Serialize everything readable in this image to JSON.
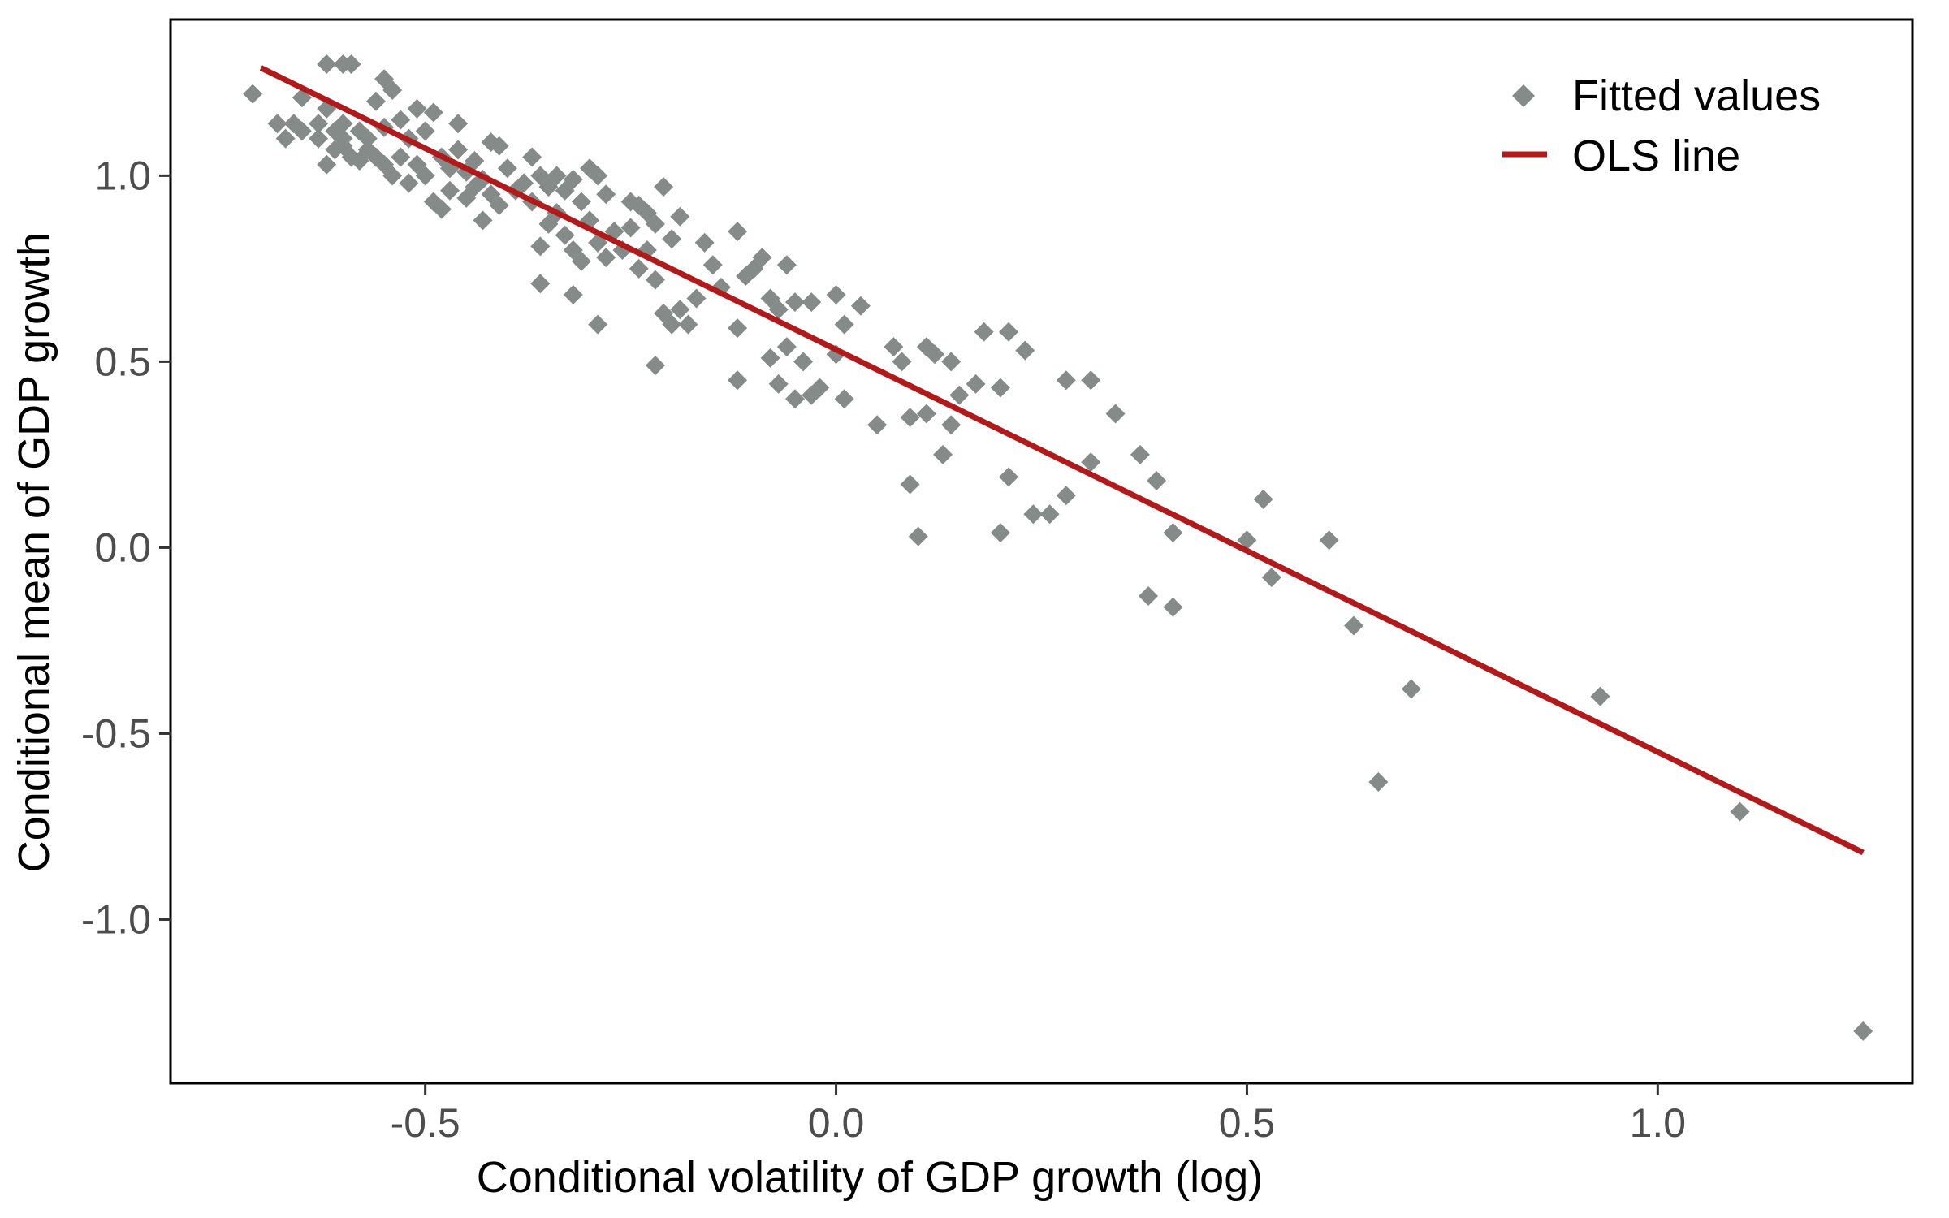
{
  "chart_data": {
    "type": "scatter",
    "title": "",
    "xlabel": "Conditional volatility of GDP growth (log)",
    "ylabel": "Conditional mean of GDP growth",
    "xlim": [
      -0.81,
      1.31
    ],
    "ylim": [
      -1.44,
      1.42
    ],
    "x_ticks": [
      -0.5,
      0.0,
      0.5,
      1.0
    ],
    "x_tick_labels": [
      "-0.5",
      "0.0",
      "0.5",
      "1.0"
    ],
    "y_ticks": [
      -1.0,
      -0.5,
      0.0,
      0.5,
      1.0
    ],
    "y_tick_labels": [
      "-1.0",
      "-0.5",
      "0.0",
      "0.5",
      "1.0"
    ],
    "grid": false,
    "legend": {
      "placement": "top-right",
      "entries": [
        {
          "label": "Fitted values",
          "type": "diamond",
          "color": "#848b89"
        },
        {
          "label": "OLS line",
          "type": "line",
          "color": "#b11a1a"
        }
      ]
    },
    "series": [
      {
        "type": "scatter",
        "name": "Fitted values",
        "color": "#848b89",
        "points": [
          [
            -0.71,
            1.22
          ],
          [
            -0.68,
            1.14
          ],
          [
            -0.67,
            1.1
          ],
          [
            -0.66,
            1.14
          ],
          [
            -0.65,
            1.12
          ],
          [
            -0.65,
            1.21
          ],
          [
            -0.63,
            1.14
          ],
          [
            -0.63,
            1.1
          ],
          [
            -0.62,
            1.3
          ],
          [
            -0.62,
            1.18
          ],
          [
            -0.62,
            1.03
          ],
          [
            -0.61,
            1.12
          ],
          [
            -0.61,
            1.07
          ],
          [
            -0.6,
            1.3
          ],
          [
            -0.6,
            1.14
          ],
          [
            -0.6,
            1.1
          ],
          [
            -0.6,
            1.08
          ],
          [
            -0.59,
            1.3
          ],
          [
            -0.59,
            1.05
          ],
          [
            -0.58,
            1.12
          ],
          [
            -0.58,
            1.04
          ],
          [
            -0.57,
            1.1
          ],
          [
            -0.57,
            1.07
          ],
          [
            -0.56,
            1.2
          ],
          [
            -0.56,
            1.05
          ],
          [
            -0.55,
            1.26
          ],
          [
            -0.55,
            1.13
          ],
          [
            -0.55,
            1.03
          ],
          [
            -0.54,
            1.23
          ],
          [
            -0.54,
            1.0
          ],
          [
            -0.53,
            1.15
          ],
          [
            -0.53,
            1.05
          ],
          [
            -0.52,
            1.1
          ],
          [
            -0.52,
            0.98
          ],
          [
            -0.51,
            1.18
          ],
          [
            -0.51,
            1.03
          ],
          [
            -0.5,
            1.12
          ],
          [
            -0.5,
            1.0
          ],
          [
            -0.49,
            1.17
          ],
          [
            -0.49,
            0.93
          ],
          [
            -0.48,
            1.05
          ],
          [
            -0.48,
            0.91
          ],
          [
            -0.47,
            1.02
          ],
          [
            -0.47,
            0.96
          ],
          [
            -0.46,
            1.14
          ],
          [
            -0.46,
            1.07
          ],
          [
            -0.45,
            1.01
          ],
          [
            -0.45,
            0.94
          ],
          [
            -0.44,
            1.04
          ],
          [
            -0.44,
            0.97
          ],
          [
            -0.43,
            0.99
          ],
          [
            -0.43,
            0.88
          ],
          [
            -0.42,
            1.09
          ],
          [
            -0.42,
            0.95
          ],
          [
            -0.41,
            1.08
          ],
          [
            -0.41,
            0.92
          ],
          [
            -0.4,
            1.02
          ],
          [
            -0.39,
            0.96
          ],
          [
            -0.38,
            0.98
          ],
          [
            -0.37,
            1.05
          ],
          [
            -0.37,
            0.93
          ],
          [
            -0.36,
            1.0
          ],
          [
            -0.36,
            0.81
          ],
          [
            -0.36,
            0.71
          ],
          [
            -0.35,
            0.97
          ],
          [
            -0.35,
            0.87
          ],
          [
            -0.34,
            1.0
          ],
          [
            -0.34,
            0.9
          ],
          [
            -0.33,
            0.96
          ],
          [
            -0.33,
            0.84
          ],
          [
            -0.32,
            0.99
          ],
          [
            -0.32,
            0.8
          ],
          [
            -0.32,
            0.68
          ],
          [
            -0.31,
            0.93
          ],
          [
            -0.31,
            0.77
          ],
          [
            -0.3,
            1.02
          ],
          [
            -0.3,
            0.88
          ],
          [
            -0.29,
            1.0
          ],
          [
            -0.29,
            0.82
          ],
          [
            -0.29,
            0.6
          ],
          [
            -0.28,
            0.95
          ],
          [
            -0.28,
            0.78
          ],
          [
            -0.27,
            0.85
          ],
          [
            -0.26,
            0.8
          ],
          [
            -0.25,
            0.93
          ],
          [
            -0.25,
            0.86
          ],
          [
            -0.24,
            0.92
          ],
          [
            -0.24,
            0.75
          ],
          [
            -0.23,
            0.9
          ],
          [
            -0.23,
            0.8
          ],
          [
            -0.22,
            0.87
          ],
          [
            -0.22,
            0.72
          ],
          [
            -0.22,
            0.49
          ],
          [
            -0.21,
            0.97
          ],
          [
            -0.21,
            0.63
          ],
          [
            -0.2,
            0.83
          ],
          [
            -0.2,
            0.6
          ],
          [
            -0.19,
            0.89
          ],
          [
            -0.19,
            0.64
          ],
          [
            -0.18,
            0.6
          ],
          [
            -0.17,
            0.67
          ],
          [
            -0.16,
            0.82
          ],
          [
            -0.15,
            0.76
          ],
          [
            -0.14,
            0.7
          ],
          [
            -0.12,
            0.85
          ],
          [
            -0.12,
            0.59
          ],
          [
            -0.12,
            0.45
          ],
          [
            -0.11,
            0.73
          ],
          [
            -0.1,
            0.75
          ],
          [
            -0.09,
            0.78
          ],
          [
            -0.08,
            0.67
          ],
          [
            -0.08,
            0.51
          ],
          [
            -0.07,
            0.64
          ],
          [
            -0.07,
            0.44
          ],
          [
            -0.06,
            0.76
          ],
          [
            -0.06,
            0.54
          ],
          [
            -0.05,
            0.66
          ],
          [
            -0.05,
            0.4
          ],
          [
            -0.04,
            0.5
          ],
          [
            -0.03,
            0.66
          ],
          [
            -0.03,
            0.41
          ],
          [
            -0.02,
            0.43
          ],
          [
            0.0,
            0.68
          ],
          [
            0.0,
            0.52
          ],
          [
            0.01,
            0.6
          ],
          [
            0.01,
            0.4
          ],
          [
            0.03,
            0.65
          ],
          [
            0.05,
            0.33
          ],
          [
            0.07,
            0.54
          ],
          [
            0.08,
            0.5
          ],
          [
            0.09,
            0.35
          ],
          [
            0.09,
            0.17
          ],
          [
            0.1,
            0.03
          ],
          [
            0.11,
            0.54
          ],
          [
            0.11,
            0.36
          ],
          [
            0.12,
            0.52
          ],
          [
            0.13,
            0.25
          ],
          [
            0.14,
            0.5
          ],
          [
            0.14,
            0.33
          ],
          [
            0.15,
            0.41
          ],
          [
            0.17,
            0.44
          ],
          [
            0.18,
            0.58
          ],
          [
            0.2,
            0.43
          ],
          [
            0.2,
            0.04
          ],
          [
            0.21,
            0.58
          ],
          [
            0.21,
            0.19
          ],
          [
            0.23,
            0.53
          ],
          [
            0.24,
            0.09
          ],
          [
            0.26,
            0.09
          ],
          [
            0.28,
            0.45
          ],
          [
            0.28,
            0.14
          ],
          [
            0.31,
            0.45
          ],
          [
            0.31,
            0.23
          ],
          [
            0.34,
            0.36
          ],
          [
            0.37,
            0.25
          ],
          [
            0.38,
            -0.13
          ],
          [
            0.39,
            0.18
          ],
          [
            0.41,
            0.04
          ],
          [
            0.41,
            -0.16
          ],
          [
            0.5,
            0.02
          ],
          [
            0.52,
            0.13
          ],
          [
            0.53,
            -0.08
          ],
          [
            0.6,
            0.02
          ],
          [
            0.63,
            -0.21
          ],
          [
            0.66,
            -0.63
          ],
          [
            0.7,
            -0.38
          ],
          [
            0.93,
            -0.4
          ],
          [
            1.1,
            -0.71
          ],
          [
            1.25,
            -1.3
          ]
        ]
      },
      {
        "type": "line",
        "name": "OLS line",
        "color": "#b11a1a",
        "points": [
          [
            -0.7,
            1.29
          ],
          [
            1.25,
            -0.82
          ]
        ]
      }
    ]
  }
}
